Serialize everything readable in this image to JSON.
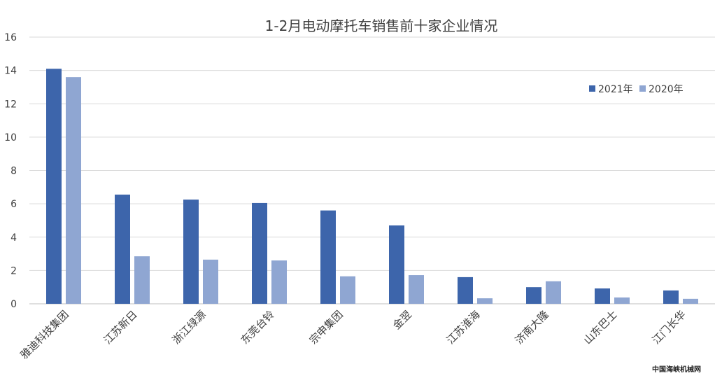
{
  "chart_data": {
    "type": "bar",
    "title": "1-2月电动摩托车销售前十家企业情况",
    "categories": [
      "雅迪科技集团",
      "江苏新日",
      "浙江绿源",
      "东莞台铃",
      "宗申集团",
      "金翌",
      "江苏淮海",
      "济南大隆",
      "山东巴士",
      "江门长华"
    ],
    "series": [
      {
        "name": "2021年",
        "color": "#3d65ab",
        "values": [
          14.1,
          6.55,
          6.25,
          6.05,
          5.6,
          4.7,
          1.6,
          1.0,
          0.92,
          0.8
        ]
      },
      {
        "name": "2020年",
        "color": "#8fa6d2",
        "values": [
          13.6,
          2.85,
          2.65,
          2.6,
          1.65,
          1.72,
          0.33,
          1.35,
          0.38,
          0.3
        ]
      }
    ],
    "ylim": [
      0,
      16
    ],
    "yticks": [
      0,
      2,
      4,
      6,
      8,
      10,
      12,
      14,
      16
    ],
    "grid": true,
    "legend_position": "top-right",
    "xlabel": "",
    "ylabel": ""
  },
  "watermark": "中国海峡机械网"
}
